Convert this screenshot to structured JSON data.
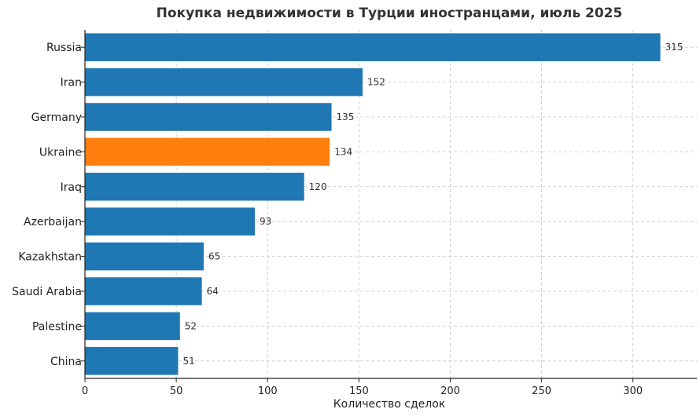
{
  "chart_data": {
    "type": "bar",
    "orientation": "horizontal",
    "title": "Покупка недвижимости в Турции иностранцами, июль 2025",
    "xlabel": "Количество сделок",
    "ylabel": "",
    "xlim": [
      0,
      335
    ],
    "xticks": [
      0,
      50,
      100,
      150,
      200,
      250,
      300
    ],
    "grid": true,
    "categories": [
      "Russia",
      "Iran",
      "Germany",
      "Ukraine",
      "Iraq",
      "Azerbaijan",
      "Kazakhstan",
      "Saudi Arabia",
      "Palestine",
      "China"
    ],
    "values": [
      315,
      152,
      135,
      134,
      120,
      93,
      65,
      64,
      52,
      51
    ],
    "highlight_category": "Ukraine",
    "colors": {
      "default": "#1f77b4",
      "highlight": "#ff7f0e"
    }
  }
}
